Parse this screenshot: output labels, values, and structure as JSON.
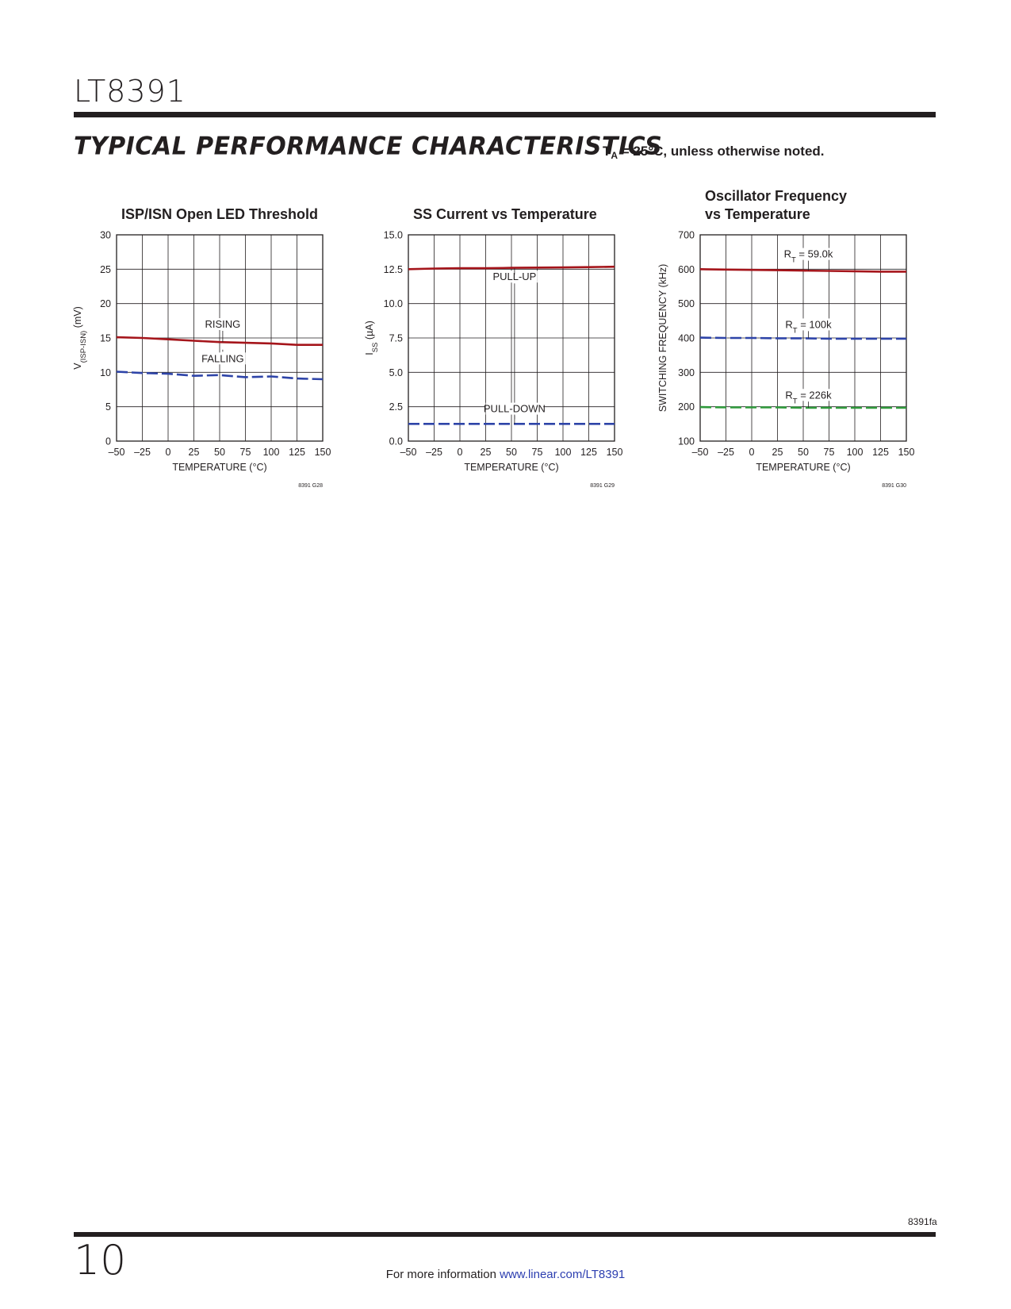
{
  "header": {
    "part_number": "LT8391",
    "section_title": "TYPICAL PERFORMANCE CHARACTERISTICS",
    "conditions_prefix": "T",
    "conditions_sub": "A",
    "conditions_suffix": " = 25°C, unless otherwise noted."
  },
  "footer": {
    "rev_code": "8391fa",
    "page_number": "10",
    "more_info_text": "For more information ",
    "more_info_link": "www.linear.com/LT8391"
  },
  "colors": {
    "red": "#a5151b",
    "blue": "#2e44a8",
    "green": "#2f9a3c",
    "grid": "#231f20"
  },
  "chart_data": [
    {
      "type": "line",
      "title": "ISP/ISN Open LED Threshold",
      "xlabel": "TEMPERATURE (°C)",
      "ylabel": "V(ISP-ISN) (mV)",
      "ylabel_main": "V",
      "ylabel_sub": "(ISP-ISN)",
      "ylabel_tail": " (mV)",
      "xlim": [
        -50,
        150
      ],
      "ylim": [
        0,
        30
      ],
      "x_ticks": [
        -50,
        -25,
        0,
        25,
        50,
        75,
        100,
        125,
        150
      ],
      "x_tick_labels": [
        "–50",
        "–25",
        "0",
        "25",
        "50",
        "75",
        "100",
        "125",
        "150"
      ],
      "y_ticks": [
        0,
        5,
        10,
        15,
        20,
        25,
        30
      ],
      "y_tick_labels": [
        "0",
        "5",
        "10",
        "15",
        "20",
        "25",
        "30"
      ],
      "grid": true,
      "ref_code": "8391 G28",
      "series": [
        {
          "name": "RISING",
          "color": "#a5151b",
          "dash": false,
          "x": [
            -50,
            -25,
            0,
            25,
            50,
            75,
            100,
            125,
            150
          ],
          "y": [
            15.1,
            15.0,
            14.8,
            14.6,
            14.4,
            14.3,
            14.2,
            14.0,
            14.0
          ]
        },
        {
          "name": "FALLING",
          "color": "#2e44a8",
          "dash": true,
          "x": [
            -50,
            -25,
            0,
            25,
            50,
            75,
            100,
            125,
            150
          ],
          "y": [
            10.1,
            9.9,
            9.8,
            9.5,
            9.6,
            9.3,
            9.4,
            9.1,
            9.0
          ]
        }
      ],
      "annotations": [
        {
          "text": "RISING",
          "x": 53,
          "y": 16.5,
          "leader_to": 14.4
        },
        {
          "text": "FALLING",
          "x": 53,
          "y": 11.5,
          "leader_to": 13.3
        }
      ]
    },
    {
      "type": "line",
      "title": "SS Current vs Temperature",
      "xlabel": "TEMPERATURE (°C)",
      "ylabel": "ISS (µA)",
      "ylabel_main": "I",
      "ylabel_sub": "SS",
      "ylabel_tail": " (µA)",
      "xlim": [
        -50,
        150
      ],
      "ylim": [
        0,
        15
      ],
      "x_ticks": [
        -50,
        -25,
        0,
        25,
        50,
        75,
        100,
        125,
        150
      ],
      "x_tick_labels": [
        "–50",
        "–25",
        "0",
        "25",
        "50",
        "75",
        "100",
        "125",
        "150"
      ],
      "y_ticks": [
        0,
        2.5,
        5,
        7.5,
        10,
        12.5,
        15
      ],
      "y_tick_labels": [
        "0.0",
        "2.5",
        "5.0",
        "7.5",
        "10.0",
        "12.5",
        "15.0"
      ],
      "grid": true,
      "ref_code": "8391 G29",
      "series": [
        {
          "name": "PULL-UP",
          "color": "#a5151b",
          "dash": false,
          "x": [
            -50,
            -25,
            0,
            25,
            50,
            75,
            100,
            125,
            150
          ],
          "y": [
            12.5,
            12.55,
            12.57,
            12.57,
            12.6,
            12.62,
            12.63,
            12.65,
            12.68
          ]
        },
        {
          "name": "PULL-DOWN",
          "color": "#2e44a8",
          "dash": true,
          "x": [
            -50,
            -25,
            0,
            25,
            50,
            75,
            100,
            125,
            150
          ],
          "y": [
            1.25,
            1.25,
            1.25,
            1.25,
            1.25,
            1.25,
            1.25,
            1.25,
            1.25
          ]
        }
      ],
      "annotations": [
        {
          "text": "PULL-UP",
          "x": 53,
          "y": 11.7,
          "leader_from": 12.1,
          "leader_to": 12.57,
          "leader_down_to": 1.6
        },
        {
          "text": "PULL-DOWN",
          "x": 53,
          "y": 2.1,
          "leader_to": 1.25
        }
      ]
    },
    {
      "type": "line",
      "title": "Oscillator Frequency",
      "title2": "vs Temperature",
      "xlabel": "TEMPERATURE (°C)",
      "ylabel": "SWITCHING FREQUENCY (kHz)",
      "xlim": [
        -50,
        150
      ],
      "ylim": [
        100,
        700
      ],
      "x_ticks": [
        -50,
        -25,
        0,
        25,
        50,
        75,
        100,
        125,
        150
      ],
      "x_tick_labels": [
        "–50",
        "–25",
        "0",
        "25",
        "50",
        "75",
        "100",
        "125",
        "150"
      ],
      "y_ticks": [
        100,
        200,
        300,
        400,
        500,
        600,
        700
      ],
      "y_tick_labels": [
        "100",
        "200",
        "300",
        "400",
        "500",
        "600",
        "700"
      ],
      "grid": true,
      "ref_code": "8391 G30",
      "series": [
        {
          "name": "RT = 59.0k",
          "color": "#a5151b",
          "dash": false,
          "x": [
            -50,
            -25,
            0,
            25,
            50,
            75,
            100,
            125,
            150
          ],
          "y": [
            600,
            599,
            598,
            597,
            596,
            595,
            594,
            593,
            593
          ]
        },
        {
          "name": "RT = 100k",
          "color": "#2e44a8",
          "dash": true,
          "x": [
            -50,
            -25,
            0,
            25,
            50,
            75,
            100,
            125,
            150
          ],
          "y": [
            401,
            400,
            400,
            399,
            399,
            398,
            398,
            398,
            398
          ]
        },
        {
          "name": "RT = 226k",
          "color": "#2f9a3c",
          "dash": true,
          "x": [
            -50,
            -25,
            0,
            25,
            50,
            75,
            100,
            125,
            150
          ],
          "y": [
            199,
            198,
            198,
            198,
            197,
            197,
            197,
            197,
            197
          ]
        }
      ],
      "annotations": [
        {
          "main": "R",
          "sub": "T",
          "tail": " = 59.0k",
          "x": 55,
          "y": 634,
          "leader_to": 596
        },
        {
          "main": "R",
          "sub": "T",
          "tail": " = 100k",
          "x": 55,
          "y": 429,
          "leader_to": 399
        },
        {
          "main": "R",
          "sub": "T",
          "tail": " = 226k",
          "x": 55,
          "y": 224,
          "leader_to": 197
        }
      ]
    }
  ]
}
